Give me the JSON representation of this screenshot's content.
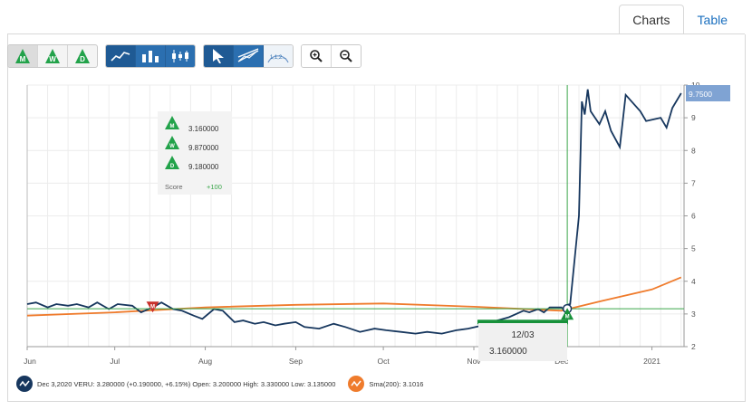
{
  "tabs": [
    {
      "label": "Charts",
      "active": true
    },
    {
      "label": "Table",
      "active": false
    }
  ],
  "toolbar": {
    "signal_buttons": [
      {
        "letter": "M",
        "icon": "monthly-signal-icon"
      },
      {
        "letter": "W",
        "icon": "weekly-signal-icon"
      },
      {
        "letter": "D",
        "icon": "daily-signal-icon"
      }
    ],
    "chart_type_buttons": [
      "line-chart-icon",
      "bar-chart-icon",
      "candlestick-chart-icon"
    ],
    "tool_buttons": [
      "pointer-icon",
      "trendline-icon",
      "fibonacci-icon"
    ],
    "zoom_buttons": [
      "zoom-in-icon",
      "zoom-out-icon"
    ]
  },
  "colors": {
    "price": "#17375e",
    "sma": "#ef7b2c",
    "signal_green": "#17913a",
    "signal_red": "#c8302a",
    "accent": "#6c95c8",
    "crosshair": "#3aa64a",
    "price_tag": "#7fa3d3"
  },
  "tooltip": {
    "rows": [
      {
        "letter": "M",
        "value": "3.160000"
      },
      {
        "letter": "W",
        "value": "9.870000"
      },
      {
        "letter": "D",
        "value": "9.180000"
      }
    ],
    "score_label": "Score",
    "score_value": "+100"
  },
  "crosshair": {
    "date_label": "12/03",
    "value_label": "3.160000",
    "date": "2020-12-03",
    "value": 3.16
  },
  "price_tag": "9.7500",
  "legend": {
    "price": "Dec 3,2020 VERU: 3.280000 (+0.190000, +6.15%) Open: 3.200000 High: 3.330000 Low: 3.135000",
    "sma": "Sma(200): 3.1016"
  },
  "chart_data": {
    "type": "line",
    "x_ticks": [
      {
        "label": "Jun",
        "date": "2020-06-01"
      },
      {
        "label": "Jul",
        "date": "2020-07-01"
      },
      {
        "label": "Aug",
        "date": "2020-08-01"
      },
      {
        "label": "Sep",
        "date": "2020-09-01"
      },
      {
        "label": "Oct",
        "date": "2020-10-01"
      },
      {
        "label": "Nov",
        "date": "2020-11-01"
      },
      {
        "label": "Dec",
        "date": "2020-12-01"
      },
      {
        "label": "2021",
        "date": "2021-01-01"
      }
    ],
    "x_range": [
      "2020-06-01",
      "2021-01-12"
    ],
    "y_ticks": [
      "2",
      "3",
      "4",
      "5",
      "6",
      "7",
      "8",
      "9",
      "10"
    ],
    "ylim": [
      2,
      10
    ],
    "grid": true,
    "series": [
      {
        "name": "VERU",
        "dates": [
          "2020-06-01",
          "2020-06-04",
          "2020-06-08",
          "2020-06-11",
          "2020-06-15",
          "2020-06-18",
          "2020-06-22",
          "2020-06-25",
          "2020-06-29",
          "2020-07-02",
          "2020-07-07",
          "2020-07-10",
          "2020-07-14",
          "2020-07-17",
          "2020-07-21",
          "2020-07-24",
          "2020-07-28",
          "2020-07-31",
          "2020-08-04",
          "2020-08-07",
          "2020-08-11",
          "2020-08-14",
          "2020-08-18",
          "2020-08-21",
          "2020-08-25",
          "2020-08-28",
          "2020-09-01",
          "2020-09-04",
          "2020-09-09",
          "2020-09-14",
          "2020-09-18",
          "2020-09-23",
          "2020-09-28",
          "2020-10-02",
          "2020-10-07",
          "2020-10-12",
          "2020-10-16",
          "2020-10-21",
          "2020-10-26",
          "2020-10-30",
          "2020-11-04",
          "2020-11-09",
          "2020-11-13",
          "2020-11-18",
          "2020-11-20",
          "2020-11-23",
          "2020-11-25",
          "2020-11-27",
          "2020-12-01",
          "2020-12-02",
          "2020-12-03",
          "2020-12-04",
          "2020-12-07",
          "2020-12-08",
          "2020-12-09",
          "2020-12-10",
          "2020-12-11",
          "2020-12-14",
          "2020-12-16",
          "2020-12-18",
          "2020-12-21",
          "2020-12-23",
          "2020-12-28",
          "2020-12-30",
          "2021-01-04",
          "2021-01-06",
          "2021-01-08",
          "2021-01-11"
        ],
        "values": [
          3.3,
          3.35,
          3.2,
          3.3,
          3.25,
          3.3,
          3.2,
          3.35,
          3.15,
          3.3,
          3.25,
          3.05,
          3.2,
          3.35,
          3.15,
          3.1,
          2.95,
          2.85,
          3.15,
          3.1,
          2.75,
          2.8,
          2.7,
          2.75,
          2.65,
          2.7,
          2.75,
          2.6,
          2.55,
          2.7,
          2.6,
          2.45,
          2.55,
          2.5,
          2.45,
          2.4,
          2.45,
          2.4,
          2.5,
          2.55,
          2.65,
          2.8,
          2.9,
          3.1,
          3.05,
          3.15,
          3.05,
          3.2,
          3.2,
          3.09,
          3.28,
          3.3,
          6.0,
          9.5,
          9.1,
          9.87,
          9.2,
          8.8,
          9.2,
          8.6,
          8.1,
          9.7,
          9.2,
          8.9,
          9.0,
          8.7,
          9.3,
          9.75
        ]
      },
      {
        "name": "Sma(200)",
        "dates": [
          "2020-06-01",
          "2020-07-01",
          "2020-08-01",
          "2020-09-01",
          "2020-10-01",
          "2020-11-01",
          "2020-12-01",
          "2020-12-15",
          "2021-01-01",
          "2021-01-11"
        ],
        "values": [
          2.95,
          3.05,
          3.2,
          3.28,
          3.32,
          3.22,
          3.1,
          3.4,
          3.75,
          4.12
        ]
      }
    ],
    "signals": [
      {
        "type": "sell",
        "label": "M",
        "date": "2020-07-14",
        "value": 3.1
      },
      {
        "type": "buy",
        "label": "M",
        "date": "2020-12-03",
        "value": 2.85
      }
    ]
  }
}
